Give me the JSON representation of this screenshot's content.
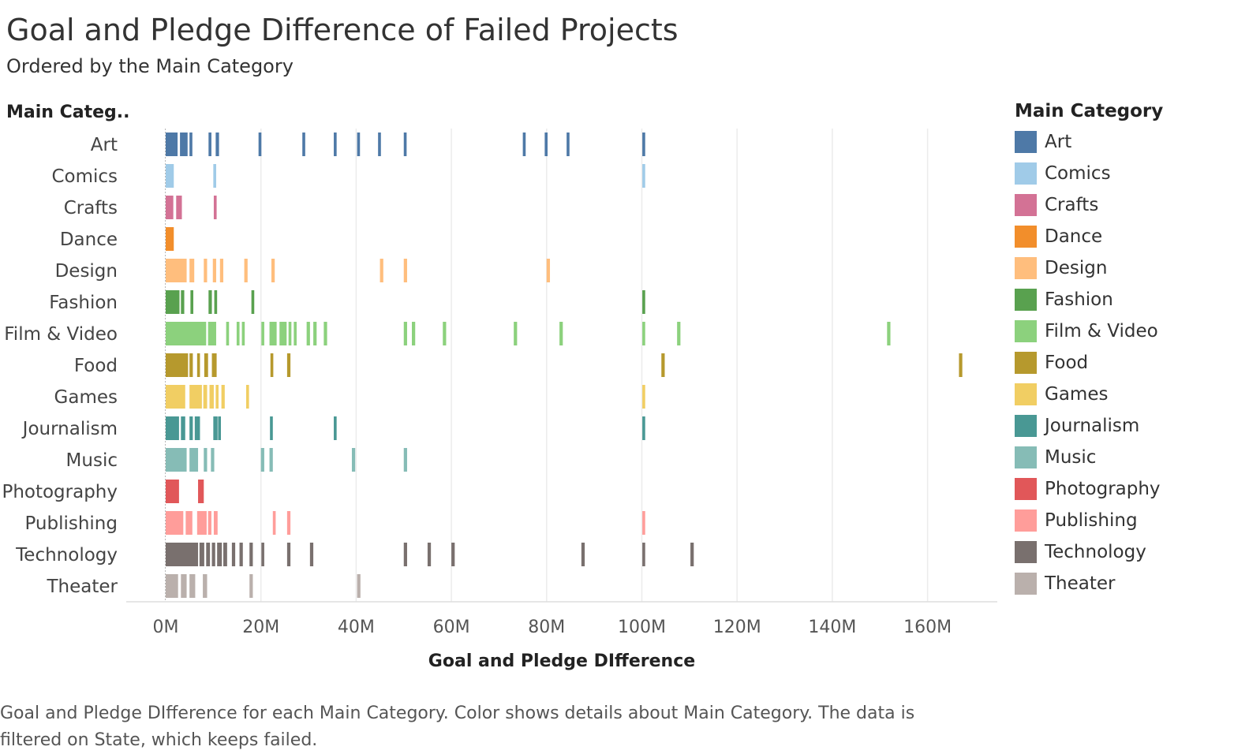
{
  "header": {
    "title": "Goal and Pledge Difference of Failed Projects",
    "subtitle": "Ordered by the Main Category"
  },
  "rows_header": "Main Categ..",
  "legend": {
    "title": "Main Category",
    "items": [
      {
        "label": "Art",
        "color": "#4e79a7"
      },
      {
        "label": "Comics",
        "color": "#a0cbe8"
      },
      {
        "label": "Crafts",
        "color": "#d37295"
      },
      {
        "label": "Dance",
        "color": "#f28e2b"
      },
      {
        "label": "Design",
        "color": "#ffbe7d"
      },
      {
        "label": "Fashion",
        "color": "#59a14f"
      },
      {
        "label": "Film & Video",
        "color": "#8cd17d"
      },
      {
        "label": "Food",
        "color": "#b6992d"
      },
      {
        "label": "Games",
        "color": "#f1ce63"
      },
      {
        "label": "Journalism",
        "color": "#499894"
      },
      {
        "label": "Music",
        "color": "#86bcb6"
      },
      {
        "label": "Photography",
        "color": "#e15759"
      },
      {
        "label": "Publishing",
        "color": "#ff9d9a"
      },
      {
        "label": "Technology",
        "color": "#79706e"
      },
      {
        "label": "Theater",
        "color": "#bab0ac"
      }
    ]
  },
  "caption": "Goal and Pledge DIfference for each Main Category.  Color shows details about Main Category. The data is filtered on State, which keeps failed.",
  "chart_data": {
    "type": "bar",
    "xlabel": "Goal and Pledge DIfference",
    "ylabel": "Main Categ..",
    "xlim": [
      -8,
      174
    ],
    "xticks": [
      0,
      20,
      40,
      60,
      80,
      100,
      120,
      140,
      160
    ],
    "xtick_labels": [
      "0M",
      "20M",
      "40M",
      "60M",
      "80M",
      "100M",
      "120M",
      "140M",
      "160M"
    ],
    "unit": "M",
    "grid": true,
    "legend_position": "right",
    "series": [
      {
        "name": "Art",
        "segments": [
          [
            0,
            2.5
          ],
          [
            3,
            4.6
          ],
          [
            5,
            5.6
          ],
          [
            9,
            9.6
          ],
          [
            10.5,
            11.2
          ],
          [
            19.5,
            20.1
          ],
          [
            28.7,
            29.3
          ],
          [
            35.3,
            35.9
          ],
          [
            40.2,
            40.8
          ],
          [
            44.6,
            45.2
          ],
          [
            50,
            50.6
          ],
          [
            75,
            75.6
          ],
          [
            79.6,
            80.2
          ],
          [
            84.2,
            84.8
          ],
          [
            100.1,
            100.7
          ]
        ]
      },
      {
        "name": "Comics",
        "segments": [
          [
            0,
            1.7
          ],
          [
            10,
            10.6
          ],
          [
            100.1,
            100.7
          ]
        ]
      },
      {
        "name": "Crafts",
        "segments": [
          [
            0,
            1.6
          ],
          [
            2.2,
            3.4
          ],
          [
            10.1,
            10.7
          ]
        ]
      },
      {
        "name": "Dance",
        "segments": [
          [
            0,
            1.7
          ]
        ]
      },
      {
        "name": "Design",
        "segments": [
          [
            0,
            4.4
          ],
          [
            5,
            6
          ],
          [
            8,
            8.7
          ],
          [
            9.9,
            10.6
          ],
          [
            11.4,
            12.1
          ],
          [
            16.5,
            17.2
          ],
          [
            22.2,
            22.9
          ],
          [
            45,
            45.7
          ],
          [
            50,
            50.7
          ],
          [
            80,
            80.7
          ]
        ]
      },
      {
        "name": "Fashion",
        "segments": [
          [
            0,
            2.9
          ],
          [
            3.2,
            3.9
          ],
          [
            5.2,
            5.8
          ],
          [
            9,
            9.7
          ],
          [
            10.2,
            10.8
          ],
          [
            18,
            18.6
          ],
          [
            100.1,
            100.7
          ]
        ]
      },
      {
        "name": "Film & Video",
        "segments": [
          [
            0,
            8.5
          ],
          [
            8.9,
            10.6
          ],
          [
            12.7,
            13.3
          ],
          [
            14.9,
            15.5
          ],
          [
            16,
            16.6
          ],
          [
            20.1,
            20.7
          ],
          [
            21.8,
            23.3
          ],
          [
            23.9,
            25.4
          ],
          [
            25.8,
            26.4
          ],
          [
            26.9,
            27.5
          ],
          [
            29.6,
            30.3
          ],
          [
            31,
            31.7
          ],
          [
            33.2,
            33.9
          ],
          [
            50,
            50.7
          ],
          [
            51.7,
            52.4
          ],
          [
            58.2,
            58.9
          ],
          [
            73.1,
            73.8
          ],
          [
            82.7,
            83.4
          ],
          [
            100.1,
            100.7
          ],
          [
            107.4,
            108.1
          ],
          [
            151.5,
            152.2
          ]
        ]
      },
      {
        "name": "Food",
        "segments": [
          [
            0,
            4.7
          ],
          [
            5,
            5.7
          ],
          [
            6.6,
            7.2
          ],
          [
            8.1,
            8.9
          ],
          [
            9.7,
            10.7
          ],
          [
            22,
            22.6
          ],
          [
            25.5,
            26.2
          ],
          [
            104.1,
            104.8
          ],
          [
            166.6,
            167.3
          ]
        ]
      },
      {
        "name": "Games",
        "segments": [
          [
            0,
            4.1
          ],
          [
            5,
            7.6
          ],
          [
            7.9,
            8.7
          ],
          [
            9.2,
            10.1
          ],
          [
            10.5,
            11.1
          ],
          [
            11.7,
            12.4
          ],
          [
            16.9,
            17.5
          ],
          [
            100.1,
            100.7
          ]
        ]
      },
      {
        "name": "Journalism",
        "segments": [
          [
            0,
            2.8
          ],
          [
            3.2,
            4.1
          ],
          [
            5,
            5.7
          ],
          [
            6.1,
            7.2
          ],
          [
            10,
            10.9
          ],
          [
            11,
            11.6
          ],
          [
            21.9,
            22.5
          ],
          [
            35.3,
            35.9
          ],
          [
            100.1,
            100.7
          ]
        ]
      },
      {
        "name": "Music",
        "segments": [
          [
            0,
            4.4
          ],
          [
            5,
            6.8
          ],
          [
            8,
            8.7
          ],
          [
            9.5,
            10.2
          ],
          [
            20,
            20.7
          ],
          [
            21.8,
            22.5
          ],
          [
            39.1,
            39.8
          ],
          [
            50,
            50.7
          ]
        ]
      },
      {
        "name": "Photography",
        "segments": [
          [
            0,
            2.8
          ],
          [
            6.8,
            8
          ]
        ]
      },
      {
        "name": "Publishing",
        "segments": [
          [
            0,
            3.7
          ],
          [
            4.2,
            5.6
          ],
          [
            6.6,
            8.6
          ],
          [
            8.9,
            9.6
          ],
          [
            10.1,
            10.9
          ],
          [
            22.5,
            23.1
          ],
          [
            25.5,
            26.2
          ],
          [
            100.1,
            100.7
          ]
        ]
      },
      {
        "name": "Technology",
        "segments": [
          [
            0,
            6.8
          ],
          [
            7.1,
            8.1
          ],
          [
            8.5,
            9.3
          ],
          [
            9.7,
            10.4
          ],
          [
            10.8,
            11.8
          ],
          [
            12.1,
            12.9
          ],
          [
            13.9,
            14.6
          ],
          [
            15.5,
            16.2
          ],
          [
            17.6,
            18.3
          ],
          [
            20.1,
            20.7
          ],
          [
            25.5,
            26.2
          ],
          [
            30.3,
            31
          ],
          [
            50,
            50.7
          ],
          [
            55,
            55.7
          ],
          [
            60,
            60.7
          ],
          [
            87.3,
            88
          ],
          [
            100.1,
            100.7
          ],
          [
            110.2,
            110.9
          ]
        ]
      },
      {
        "name": "Theater",
        "segments": [
          [
            0,
            2.6
          ],
          [
            3.2,
            4.4
          ],
          [
            5,
            6.2
          ],
          [
            7.8,
            8.7
          ],
          [
            17.6,
            18.3
          ],
          [
            40.2,
            40.9
          ]
        ]
      }
    ]
  }
}
